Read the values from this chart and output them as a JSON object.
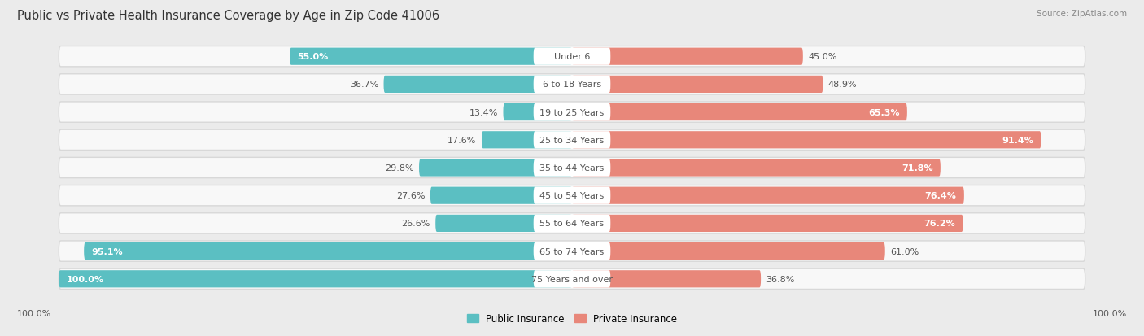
{
  "title": "Public vs Private Health Insurance Coverage by Age in Zip Code 41006",
  "source": "Source: ZipAtlas.com",
  "categories": [
    "Under 6",
    "6 to 18 Years",
    "19 to 25 Years",
    "25 to 34 Years",
    "35 to 44 Years",
    "45 to 54 Years",
    "55 to 64 Years",
    "65 to 74 Years",
    "75 Years and over"
  ],
  "public_values": [
    55.0,
    36.7,
    13.4,
    17.6,
    29.8,
    27.6,
    26.6,
    95.1,
    100.0
  ],
  "private_values": [
    45.0,
    48.9,
    65.3,
    91.4,
    71.8,
    76.4,
    76.2,
    61.0,
    36.8
  ],
  "public_color": "#5bbfc2",
  "private_color": "#e8877a",
  "background_color": "#ebebeb",
  "bar_bg_color": "#f8f8f8",
  "bar_shadow_color": "#d8d8d8",
  "title_fontsize": 10.5,
  "cat_fontsize": 8,
  "value_fontsize": 8,
  "legend_fontsize": 8.5,
  "source_fontsize": 7.5,
  "x_bottom_label": "100.0%",
  "pub_inside_threshold": 50,
  "priv_inside_threshold": 60,
  "pub_value_inside_color": "white",
  "pub_value_outside_color": "#555555",
  "priv_value_inside_color": "white",
  "priv_value_outside_color": "#555555",
  "pub_inside_cases": [
    0,
    7,
    8
  ],
  "priv_inside_cases": [
    3,
    4,
    5,
    6,
    2
  ]
}
